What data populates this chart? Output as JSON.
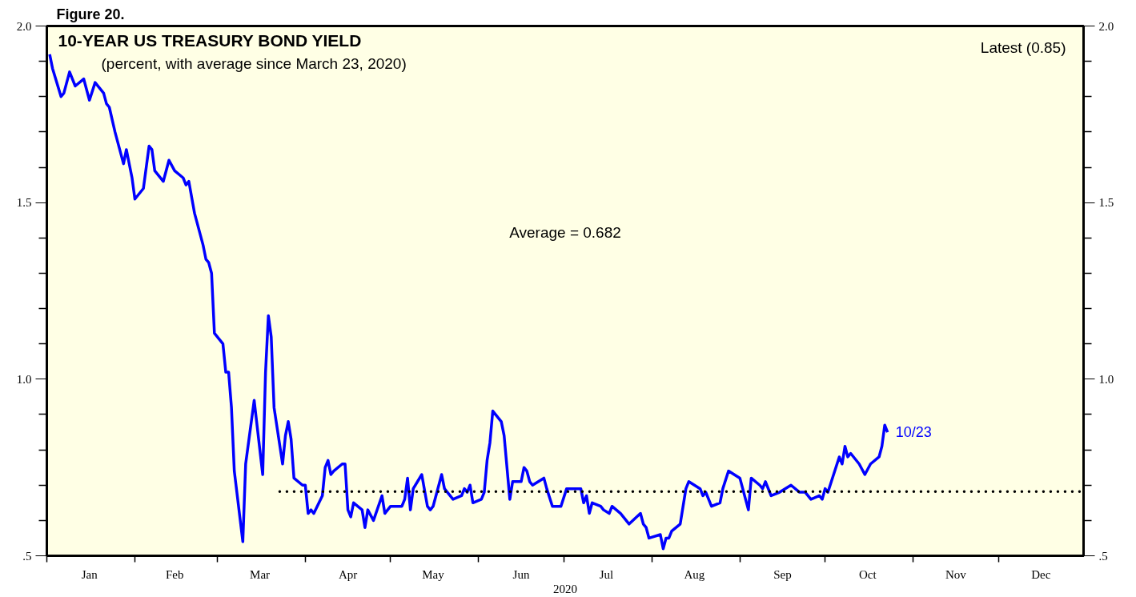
{
  "chart_data": {
    "type": "line",
    "title": "10-YEAR US TREASURY BOND YIELD",
    "subtitle": "(percent, with average since March 23, 2020)",
    "xlabel": "2020",
    "annotations": [
      "Figure 20.",
      "Latest (0.85)",
      "Average = 0.682",
      {
        "text": "10/23",
        "x": "2020-10-23",
        "y": 0.85
      }
    ],
    "x": [
      "2020-01-02",
      "2020-01-03",
      "2020-01-06",
      "2020-01-07",
      "2020-01-09",
      "2020-01-11",
      "2020-01-14",
      "2020-01-16",
      "2020-01-18",
      "2020-01-21",
      "2020-01-22",
      "2020-01-23",
      "2020-01-25",
      "2020-01-28",
      "2020-01-29",
      "2020-01-31",
      "2020-02-01",
      "2020-02-04",
      "2020-02-06",
      "2020-02-07",
      "2020-02-08",
      "2020-02-11",
      "2020-02-13",
      "2020-02-15",
      "2020-02-18",
      "2020-02-19",
      "2020-02-20",
      "2020-02-22",
      "2020-02-25",
      "2020-02-26",
      "2020-02-27",
      "2020-02-28",
      "2020-02-29",
      "2020-03-03",
      "2020-03-04",
      "2020-03-05",
      "2020-03-06",
      "2020-03-07",
      "2020-03-10",
      "2020-03-11",
      "2020-03-14",
      "2020-03-17",
      "2020-03-18",
      "2020-03-19",
      "2020-03-20",
      "2020-03-21",
      "2020-03-24",
      "2020-03-25",
      "2020-03-26",
      "2020-03-27",
      "2020-03-28",
      "2020-03-31",
      "2020-04-01",
      "2020-04-02",
      "2020-04-03",
      "2020-04-04",
      "2020-04-07",
      "2020-04-08",
      "2020-04-09",
      "2020-04-10",
      "2020-04-11",
      "2020-04-14",
      "2020-04-15",
      "2020-04-16",
      "2020-04-17",
      "2020-04-18",
      "2020-04-21",
      "2020-04-22",
      "2020-04-23",
      "2020-04-25",
      "2020-04-28",
      "2020-04-29",
      "2020-05-01",
      "2020-05-05",
      "2020-05-06",
      "2020-05-07",
      "2020-05-08",
      "2020-05-09",
      "2020-05-12",
      "2020-05-14",
      "2020-05-15",
      "2020-05-16",
      "2020-05-19",
      "2020-05-20",
      "2020-05-23",
      "2020-05-26",
      "2020-05-27",
      "2020-05-28",
      "2020-05-29",
      "2020-05-30",
      "2020-06-02",
      "2020-06-03",
      "2020-06-04",
      "2020-06-05",
      "2020-06-06",
      "2020-06-09",
      "2020-06-10",
      "2020-06-12",
      "2020-06-13",
      "2020-06-16",
      "2020-06-17",
      "2020-06-18",
      "2020-06-19",
      "2020-06-20",
      "2020-06-24",
      "2020-06-25",
      "2020-06-27",
      "2020-06-30",
      "2020-07-02",
      "2020-07-07",
      "2020-07-08",
      "2020-07-09",
      "2020-07-10",
      "2020-07-11",
      "2020-07-14",
      "2020-07-15",
      "2020-07-17",
      "2020-07-18",
      "2020-07-21",
      "2020-07-24",
      "2020-07-28",
      "2020-07-29",
      "2020-07-30",
      "2020-07-31",
      "2020-08-04",
      "2020-08-05",
      "2020-08-06",
      "2020-08-07",
      "2020-08-08",
      "2020-08-11",
      "2020-08-13",
      "2020-08-14",
      "2020-08-18",
      "2020-08-19",
      "2020-08-20",
      "2020-08-22",
      "2020-08-25",
      "2020-08-26",
      "2020-08-28",
      "2020-09-01",
      "2020-09-04",
      "2020-09-05",
      "2020-09-08",
      "2020-09-09",
      "2020-09-10",
      "2020-09-12",
      "2020-09-15",
      "2020-09-19",
      "2020-09-22",
      "2020-09-24",
      "2020-09-26",
      "2020-09-29",
      "2020-09-30",
      "2020-10-01",
      "2020-10-02",
      "2020-10-06",
      "2020-10-07",
      "2020-10-08",
      "2020-10-09",
      "2020-10-10",
      "2020-10-13",
      "2020-10-15",
      "2020-10-17",
      "2020-10-20",
      "2020-10-21",
      "2020-10-22",
      "2020-10-23"
    ],
    "series": [
      {
        "color": "#0000ff",
        "values": [
          1.92,
          1.88,
          1.8,
          1.81,
          1.87,
          1.83,
          1.85,
          1.79,
          1.84,
          1.81,
          1.78,
          1.77,
          1.7,
          1.61,
          1.65,
          1.57,
          1.51,
          1.54,
          1.66,
          1.65,
          1.59,
          1.56,
          1.62,
          1.59,
          1.57,
          1.55,
          1.56,
          1.47,
          1.38,
          1.34,
          1.33,
          1.3,
          1.13,
          1.1,
          1.02,
          1.02,
          0.92,
          0.74,
          0.54,
          0.76,
          0.94,
          0.73,
          1.02,
          1.18,
          1.12,
          0.92,
          0.76,
          0.84,
          0.88,
          0.83,
          0.72,
          0.7,
          0.7,
          0.62,
          0.63,
          0.62,
          0.67,
          0.75,
          0.77,
          0.73,
          0.74,
          0.76,
          0.76,
          0.63,
          0.61,
          0.65,
          0.63,
          0.58,
          0.63,
          0.6,
          0.67,
          0.62,
          0.64,
          0.64,
          0.66,
          0.72,
          0.63,
          0.69,
          0.73,
          0.64,
          0.63,
          0.64,
          0.73,
          0.69,
          0.66,
          0.67,
          0.69,
          0.68,
          0.7,
          0.65,
          0.66,
          0.68,
          0.77,
          0.82,
          0.91,
          0.88,
          0.84,
          0.66,
          0.71,
          0.71,
          0.75,
          0.74,
          0.71,
          0.7,
          0.72,
          0.69,
          0.64,
          0.64,
          0.69,
          0.69,
          0.65,
          0.67,
          0.62,
          0.65,
          0.64,
          0.63,
          0.62,
          0.64,
          0.62,
          0.59,
          0.62,
          0.59,
          0.58,
          0.55,
          0.56,
          0.52,
          0.55,
          0.55,
          0.57,
          0.59,
          0.69,
          0.71,
          0.69,
          0.67,
          0.68,
          0.64,
          0.65,
          0.69,
          0.74,
          0.72,
          0.63,
          0.72,
          0.7,
          0.69,
          0.71,
          0.67,
          0.68,
          0.7,
          0.68,
          0.68,
          0.66,
          0.67,
          0.66,
          0.69,
          0.68,
          0.78,
          0.76,
          0.81,
          0.78,
          0.79,
          0.76,
          0.73,
          0.76,
          0.78,
          0.81,
          0.87,
          0.85
        ]
      },
      {
        "type": "line",
        "color": "#000000",
        "line_style": "dotted",
        "x": [
          "2020-03-23",
          "2020-12-31"
        ],
        "values": [
          0.682,
          0.682
        ]
      }
    ],
    "xlim": [
      "2020-01-01",
      "2020-12-31"
    ],
    "xticks": [
      {
        "value": "2020-01-01",
        "label": null
      },
      {
        "value": "2020-01-16",
        "label": "Jan"
      },
      {
        "value": "2020-02-01",
        "label": null
      },
      {
        "value": "2020-02-15",
        "label": "Feb"
      },
      {
        "value": "2020-03-01",
        "label": null
      },
      {
        "value": "2020-03-16",
        "label": "Mar"
      },
      {
        "value": "2020-04-01",
        "label": null
      },
      {
        "value": "2020-04-16",
        "label": "Apr"
      },
      {
        "value": "2020-05-01",
        "label": null
      },
      {
        "value": "2020-05-16",
        "label": "May"
      },
      {
        "value": "2020-06-01",
        "label": null
      },
      {
        "value": "2020-06-16",
        "label": "Jun"
      },
      {
        "value": "2020-07-01",
        "label": null
      },
      {
        "value": "2020-07-16",
        "label": "Jul"
      },
      {
        "value": "2020-08-01",
        "label": null
      },
      {
        "value": "2020-08-16",
        "label": "Aug"
      },
      {
        "value": "2020-09-01",
        "label": null
      },
      {
        "value": "2020-09-16",
        "label": "Sep"
      },
      {
        "value": "2020-10-01",
        "label": null
      },
      {
        "value": "2020-10-16",
        "label": "Oct"
      },
      {
        "value": "2020-11-01",
        "label": null
      },
      {
        "value": "2020-11-16",
        "label": "Nov"
      },
      {
        "value": "2020-12-01",
        "label": null
      },
      {
        "value": "2020-12-16",
        "label": "Dec"
      }
    ],
    "ylim": [
      0.5,
      2.0
    ],
    "yticks": [
      {
        "value": 0.5,
        "label": ".5"
      },
      {
        "value": 0.6,
        "label": null
      },
      {
        "value": 0.7,
        "label": null
      },
      {
        "value": 0.8,
        "label": null
      },
      {
        "value": 0.9,
        "label": null
      },
      {
        "value": 1.0,
        "label": "1.0"
      },
      {
        "value": 1.1,
        "label": null
      },
      {
        "value": 1.2,
        "label": null
      },
      {
        "value": 1.3,
        "label": null
      },
      {
        "value": 1.4,
        "label": null
      },
      {
        "value": 1.5,
        "label": "1.5"
      },
      {
        "value": 1.6,
        "label": null
      },
      {
        "value": 1.7,
        "label": null
      },
      {
        "value": 1.8,
        "label": null
      },
      {
        "value": 1.9,
        "label": null
      },
      {
        "value": 2.0,
        "label": "2.0"
      }
    ],
    "y2lim": [
      0.5,
      2.0
    ],
    "y2ticks": [
      {
        "value": 0.5,
        "label": ".5"
      },
      {
        "value": 0.6,
        "label": null
      },
      {
        "value": 0.7,
        "label": null
      },
      {
        "value": 0.8,
        "label": null
      },
      {
        "value": 0.9,
        "label": null
      },
      {
        "value": 1.0,
        "label": "1.0"
      },
      {
        "value": 1.1,
        "label": null
      },
      {
        "value": 1.2,
        "label": null
      },
      {
        "value": 1.3,
        "label": null
      },
      {
        "value": 1.4,
        "label": null
      },
      {
        "value": 1.5,
        "label": "1.5"
      },
      {
        "value": 1.6,
        "label": null
      },
      {
        "value": 1.7,
        "label": null
      },
      {
        "value": 1.8,
        "label": null
      },
      {
        "value": 1.9,
        "label": null
      },
      {
        "value": 2.0,
        "label": "2.0"
      }
    ],
    "grid": false,
    "marker": "none",
    "line_style": "solid"
  }
}
